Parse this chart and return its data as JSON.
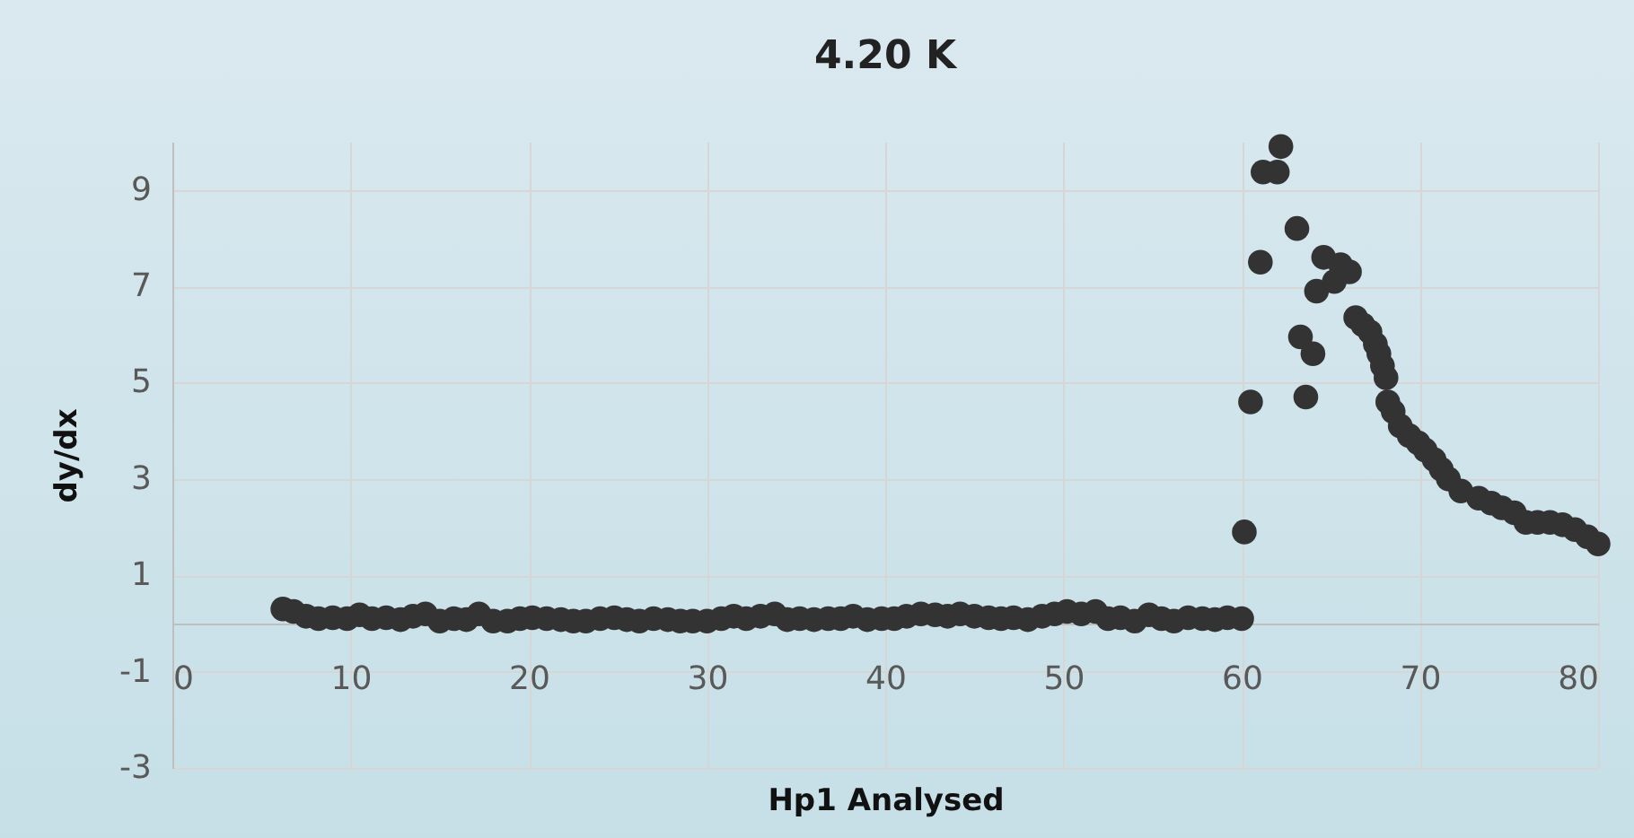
{
  "chart_data": {
    "type": "scatter",
    "title": "4.20 K",
    "xlabel": "Hp1 Analysed",
    "ylabel": "dy/dx",
    "x": [
      6.2,
      6.8,
      7.5,
      8.2,
      9,
      9.8,
      10.5,
      11.2,
      12,
      12.8,
      13.5,
      14.2,
      15,
      15.8,
      16.5,
      17.2,
      18,
      18.8,
      19.5,
      20.2,
      21,
      21.8,
      22.5,
      23.2,
      24,
      24.8,
      25.5,
      26.2,
      27,
      27.8,
      28.5,
      29.2,
      30,
      30.8,
      31.5,
      32.2,
      33,
      33.8,
      34.5,
      35.2,
      36,
      36.8,
      37.5,
      38.2,
      39,
      39.8,
      40.5,
      41.2,
      42,
      42.8,
      43.5,
      44.2,
      45,
      45.8,
      46.5,
      47.2,
      48,
      48.8,
      49.5,
      50.2,
      51,
      51.8,
      52.5,
      53.2,
      54,
      54.8,
      55.5,
      56.2,
      57,
      57.8,
      58.5,
      59.2,
      60,
      60.15,
      60.5,
      61.05,
      61.2,
      62,
      62.2,
      63.1,
      63.3,
      63.6,
      64,
      64.2,
      64.6,
      65.2,
      65.55,
      66.05,
      66.4,
      66.8,
      67.2,
      67.5,
      67.7,
      67.9,
      68.1,
      68.2,
      68.5,
      68.9,
      69.4,
      69.9,
      70.3,
      70.8,
      71.2,
      71.6,
      72.3,
      73.3,
      74,
      74.6,
      75.3,
      75.95,
      76.6,
      77.3,
      78,
      78.7,
      79.4,
      80
    ],
    "values": [
      0.3,
      0.25,
      0.15,
      0.1,
      0.12,
      0.1,
      0.18,
      0.1,
      0.12,
      0.08,
      0.15,
      0.2,
      0.05,
      0.1,
      0.08,
      0.2,
      0.05,
      0.05,
      0.1,
      0.12,
      0.1,
      0.08,
      0.05,
      0.05,
      0.1,
      0.12,
      0.08,
      0.05,
      0.1,
      0.08,
      0.05,
      0.05,
      0.05,
      0.1,
      0.15,
      0.1,
      0.15,
      0.2,
      0.08,
      0.1,
      0.08,
      0.1,
      0.1,
      0.15,
      0.08,
      0.1,
      0.1,
      0.15,
      0.2,
      0.18,
      0.15,
      0.2,
      0.15,
      0.12,
      0.1,
      0.12,
      0.08,
      0.15,
      0.2,
      0.25,
      0.2,
      0.25,
      0.1,
      0.12,
      0.05,
      0.18,
      0.1,
      0.05,
      0.12,
      0.1,
      0.08,
      0.12,
      0.1,
      1.9,
      4.6,
      7.5,
      9.37,
      9.37,
      9.9,
      8.2,
      5.95,
      4.7,
      5.6,
      6.9,
      7.6,
      7.1,
      7.45,
      7.3,
      6.35,
      6.2,
      6.05,
      5.8,
      5.6,
      5.35,
      5.1,
      4.6,
      4.4,
      4.1,
      3.9,
      3.75,
      3.6,
      3.4,
      3.2,
      3.0,
      2.75,
      2.6,
      2.5,
      2.4,
      2.3,
      2.1,
      2.1,
      2.1,
      2.05,
      1.95,
      1.8,
      1.65
    ],
    "color": "#333333",
    "marker": "circle",
    "grid": true,
    "xlim": [
      0,
      80
    ],
    "xticks": [
      0,
      10,
      20,
      30,
      40,
      50,
      60,
      70,
      80
    ],
    "ylim": [
      -3,
      10
    ],
    "yticks": [
      -3,
      -1,
      1,
      3,
      5,
      7,
      9
    ]
  }
}
